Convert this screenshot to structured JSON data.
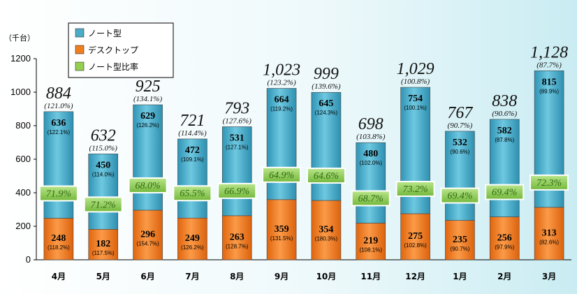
{
  "chart_data": {
    "type": "bar",
    "stacked": true,
    "unit_label": "（千台）",
    "ylim": [
      0,
      1200
    ],
    "yticks": [
      0,
      200,
      400,
      600,
      800,
      1000,
      1200
    ],
    "grid": false,
    "legend_position": "top-left",
    "categories": [
      "4月",
      "5月",
      "6月",
      "7月",
      "8月",
      "9月",
      "10月",
      "11月",
      "12月",
      "1月",
      "2月",
      "3月"
    ],
    "series": [
      {
        "name": "ノート型",
        "color": "#4bacc6",
        "values": [
          636,
          450,
          629,
          472,
          531,
          664,
          645,
          480,
          754,
          532,
          582,
          815
        ],
        "labels": [
          "(122.1%)",
          "(114.0%)",
          "(126.2%)",
          "(109.1%)",
          "(127.1%)",
          "(119.2%)",
          "(124.3%)",
          "(102.0%)",
          "(100.1%)",
          "(90.6%)",
          "(87.8%)",
          "(89.9%)"
        ]
      },
      {
        "name": "デスクトップ",
        "color": "#f07e1c",
        "values": [
          248,
          182,
          296,
          249,
          263,
          359,
          354,
          219,
          275,
          235,
          256,
          313
        ],
        "labels": [
          "(118.2%)",
          "(117.5%)",
          "(154.7%)",
          "(126.2%)",
          "(128.7%)",
          "(131.5%)",
          "(180.3%)",
          "(108.1%)",
          "(102.8%)",
          "(90.7%)",
          "(97.9%)",
          "(82.6%)"
        ]
      },
      {
        "name": "ノート型比率",
        "color": "#92d050",
        "values": [
          "71.9%",
          "71.2%",
          "68.0%",
          "65.5%",
          "66.9%",
          "64.9%",
          "64.6%",
          "68.7%",
          "73.2%",
          "69.4%",
          "69.4%",
          "72.3%"
        ]
      }
    ],
    "totals": [
      "884",
      "632",
      "925",
      "721",
      "793",
      "1,023",
      "999",
      "698",
      "1,029",
      "767",
      "838",
      "1,128"
    ],
    "total_pcts": [
      "(121.0%)",
      "(115.0%)",
      "(134.1%)",
      "(114.4%)",
      "(127.6%)",
      "(123.2%)",
      "(139.6%)",
      "(103.8%)",
      "(100.8%)",
      "(90.7%)",
      "(90.6%)",
      "(87.7%)"
    ]
  }
}
